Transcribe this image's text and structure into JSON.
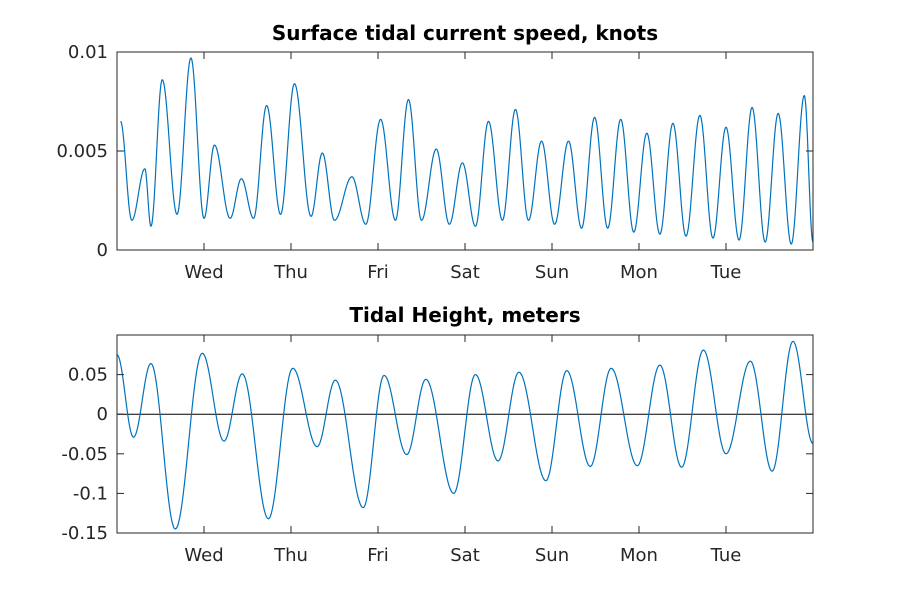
{
  "chart_data": [
    {
      "type": "line",
      "title": "Surface tidal current speed, knots",
      "xlabel": "",
      "ylabel": "",
      "xlim": [
        0,
        8
      ],
      "ylim": [
        0,
        0.01
      ],
      "yticks": [
        0,
        0.005,
        0.01
      ],
      "ytick_labels": [
        "0",
        "0.005",
        "0.01"
      ],
      "xticks": [
        1,
        2,
        3,
        4,
        5,
        6,
        7
      ],
      "xtick_labels": [
        "Wed",
        "Thu",
        "Fri",
        "Sat",
        "Sun",
        "Mon",
        "Tue"
      ],
      "color": "#0072bd",
      "grid": false,
      "series": [
        {
          "x": [
            0.04,
            0.17,
            0.32,
            0.39,
            0.52,
            0.69,
            0.85,
            1.0,
            1.12,
            1.3,
            1.43,
            1.57,
            1.72,
            1.88,
            2.04,
            2.23,
            2.36,
            2.5,
            2.7,
            2.86,
            3.03,
            3.2,
            3.35,
            3.5,
            3.67,
            3.82,
            3.97,
            4.12,
            4.27,
            4.43,
            4.58,
            4.73,
            4.88,
            5.03,
            5.19,
            5.34,
            5.49,
            5.64,
            5.79,
            5.94,
            6.09,
            6.24,
            6.39,
            6.54,
            6.7,
            6.85,
            7.0,
            7.15,
            7.3,
            7.45,
            7.6,
            7.75,
            7.9,
            8.0
          ],
          "y": [
            0.0065,
            0.0015,
            0.0041,
            0.0012,
            0.0086,
            0.0018,
            0.0097,
            0.0016,
            0.0053,
            0.0016,
            0.0036,
            0.0016,
            0.0073,
            0.0018,
            0.0084,
            0.0017,
            0.0049,
            0.0015,
            0.0037,
            0.0013,
            0.0066,
            0.0015,
            0.0076,
            0.0015,
            0.0051,
            0.0013,
            0.0044,
            0.0012,
            0.0065,
            0.0015,
            0.0071,
            0.0015,
            0.0055,
            0.0013,
            0.0055,
            0.0011,
            0.0067,
            0.0011,
            0.0066,
            0.0009,
            0.0059,
            0.0008,
            0.0064,
            0.0007,
            0.0068,
            0.0006,
            0.0062,
            0.0005,
            0.0072,
            0.0004,
            0.0069,
            0.0003,
            0.0078,
            0.0004
          ]
        }
      ]
    },
    {
      "type": "line",
      "title": "Tidal Height, meters",
      "xlabel": "",
      "ylabel": "",
      "xlim": [
        0,
        8
      ],
      "ylim": [
        -0.15,
        0.1
      ],
      "yticks": [
        -0.15,
        -0.1,
        -0.05,
        0,
        0.05
      ],
      "ytick_labels": [
        "-0.15",
        "-0.1",
        "-0.05",
        "0",
        "0.05"
      ],
      "xticks": [
        1,
        2,
        3,
        4,
        5,
        6,
        7
      ],
      "xtick_labels": [
        "Wed",
        "Thu",
        "Fri",
        "Sat",
        "Sun",
        "Mon",
        "Tue"
      ],
      "color": "#0072bd",
      "zero_line": true,
      "grid": false,
      "series": [
        {
          "x": [
            0.0,
            0.19,
            0.39,
            0.67,
            0.98,
            1.23,
            1.44,
            1.74,
            2.02,
            2.3,
            2.51,
            2.83,
            3.07,
            3.33,
            3.55,
            3.87,
            4.12,
            4.38,
            4.62,
            4.93,
            5.17,
            5.44,
            5.68,
            5.98,
            6.24,
            6.49,
            6.74,
            7.0,
            7.28,
            7.53,
            7.77,
            8.0
          ],
          "y": [
            0.075,
            -0.029,
            0.064,
            -0.145,
            0.077,
            -0.034,
            0.051,
            -0.132,
            0.058,
            -0.041,
            0.043,
            -0.118,
            0.049,
            -0.051,
            0.044,
            -0.1,
            0.05,
            -0.059,
            0.053,
            -0.084,
            0.055,
            -0.066,
            0.058,
            -0.065,
            0.062,
            -0.067,
            0.081,
            -0.05,
            0.067,
            -0.072,
            0.092,
            -0.037
          ]
        }
      ]
    }
  ]
}
